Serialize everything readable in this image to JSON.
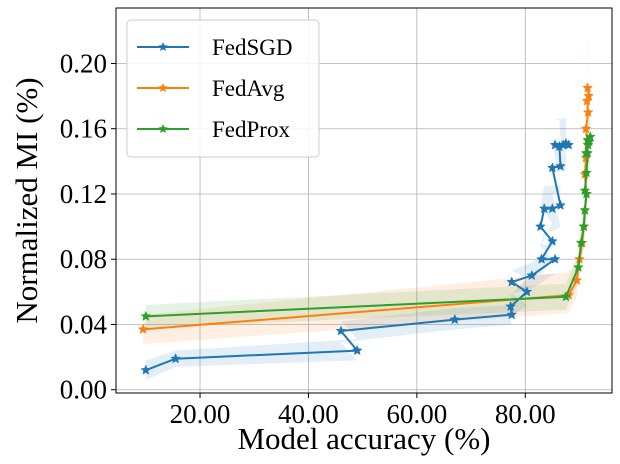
{
  "chart_data": {
    "type": "line",
    "title": "",
    "xlabel": "Model accuracy (%)",
    "ylabel": "Normalized MI (%)",
    "xlim": [
      4.5,
      96
    ],
    "ylim": [
      -0.002,
      0.234
    ],
    "grid": true,
    "legend_position": "top-left",
    "x_ticks": [
      20,
      40,
      60,
      80
    ],
    "x_tick_labels": [
      "20.00",
      "40.00",
      "60.00",
      "80.00"
    ],
    "y_ticks": [
      0.0,
      0.04,
      0.08,
      0.12,
      0.16,
      0.2
    ],
    "y_tick_labels": [
      "0.00",
      "0.04",
      "0.08",
      "0.12",
      "0.16",
      "0.20"
    ],
    "series": [
      {
        "name": "FedSGD",
        "color": "#1f77b4",
        "marker": "star",
        "x": [
          10.0,
          15.5,
          49.0,
          46.0,
          67.0,
          77.5,
          77.3,
          80.3,
          77.5,
          81.2,
          85.5,
          83.0,
          85.0,
          82.8,
          83.5,
          85.0,
          86.5,
          85.0,
          86.5,
          86.3,
          85.5,
          87.0,
          88.0,
          87.0,
          87.5
        ],
        "y": [
          0.012,
          0.019,
          0.024,
          0.036,
          0.043,
          0.046,
          0.051,
          0.06,
          0.066,
          0.07,
          0.08,
          0.08,
          0.091,
          0.1,
          0.111,
          0.111,
          0.113,
          0.136,
          0.137,
          0.149,
          0.15,
          0.15,
          0.15,
          0.15,
          0.151
        ],
        "band_lower": [
          0.006,
          0.014,
          0.018,
          0.029,
          0.037,
          0.04,
          0.044,
          0.052,
          0.059,
          0.062,
          0.071,
          0.071,
          0.08,
          0.088,
          0.097,
          0.097,
          0.1,
          0.12,
          0.121,
          0.133,
          0.134,
          0.134,
          0.134,
          0.134,
          0.135
        ],
        "band_upper": [
          0.018,
          0.024,
          0.031,
          0.042,
          0.05,
          0.052,
          0.058,
          0.068,
          0.073,
          0.078,
          0.089,
          0.089,
          0.102,
          0.112,
          0.125,
          0.125,
          0.126,
          0.152,
          0.153,
          0.165,
          0.166,
          0.166,
          0.166,
          0.166,
          0.167
        ]
      },
      {
        "name": "FedAvg",
        "color": "#ff7f0e",
        "marker": "star",
        "x": [
          9.5,
          88.0,
          89.5,
          90.0,
          90.5,
          90.8,
          91.0,
          91.3,
          91.0,
          91.2,
          91.5,
          91.2,
          91.6,
          91.4,
          91.7,
          91.5
        ],
        "y": [
          0.037,
          0.058,
          0.067,
          0.08,
          0.09,
          0.1,
          0.11,
          0.12,
          0.132,
          0.142,
          0.15,
          0.16,
          0.17,
          0.177,
          0.18,
          0.185
        ],
        "band_lower": [
          0.028,
          0.047,
          0.057,
          0.07,
          0.079,
          0.087,
          0.096,
          0.104,
          0.115,
          0.123,
          0.13,
          0.138,
          0.146,
          0.152,
          0.154,
          0.158
        ],
        "band_upper": [
          0.046,
          0.072,
          0.077,
          0.091,
          0.102,
          0.113,
          0.125,
          0.136,
          0.15,
          0.162,
          0.172,
          0.184,
          0.196,
          0.204,
          0.208,
          0.214
        ]
      },
      {
        "name": "FedProx",
        "color": "#2ca02c",
        "marker": "star",
        "x": [
          10.0,
          87.5,
          89.8,
          90.3,
          90.8,
          91.0,
          91.3,
          91.0,
          91.3,
          91.5,
          91.2,
          91.6,
          91.8,
          91.5,
          92.0
        ],
        "y": [
          0.045,
          0.057,
          0.075,
          0.09,
          0.1,
          0.11,
          0.12,
          0.122,
          0.133,
          0.145,
          0.145,
          0.15,
          0.152,
          0.153,
          0.155
        ],
        "band_lower": [
          0.038,
          0.049,
          0.066,
          0.079,
          0.088,
          0.097,
          0.106,
          0.108,
          0.118,
          0.129,
          0.129,
          0.134,
          0.136,
          0.137,
          0.138
        ],
        "band_upper": [
          0.052,
          0.065,
          0.084,
          0.101,
          0.112,
          0.123,
          0.134,
          0.136,
          0.148,
          0.161,
          0.161,
          0.166,
          0.168,
          0.169,
          0.172
        ]
      }
    ]
  }
}
